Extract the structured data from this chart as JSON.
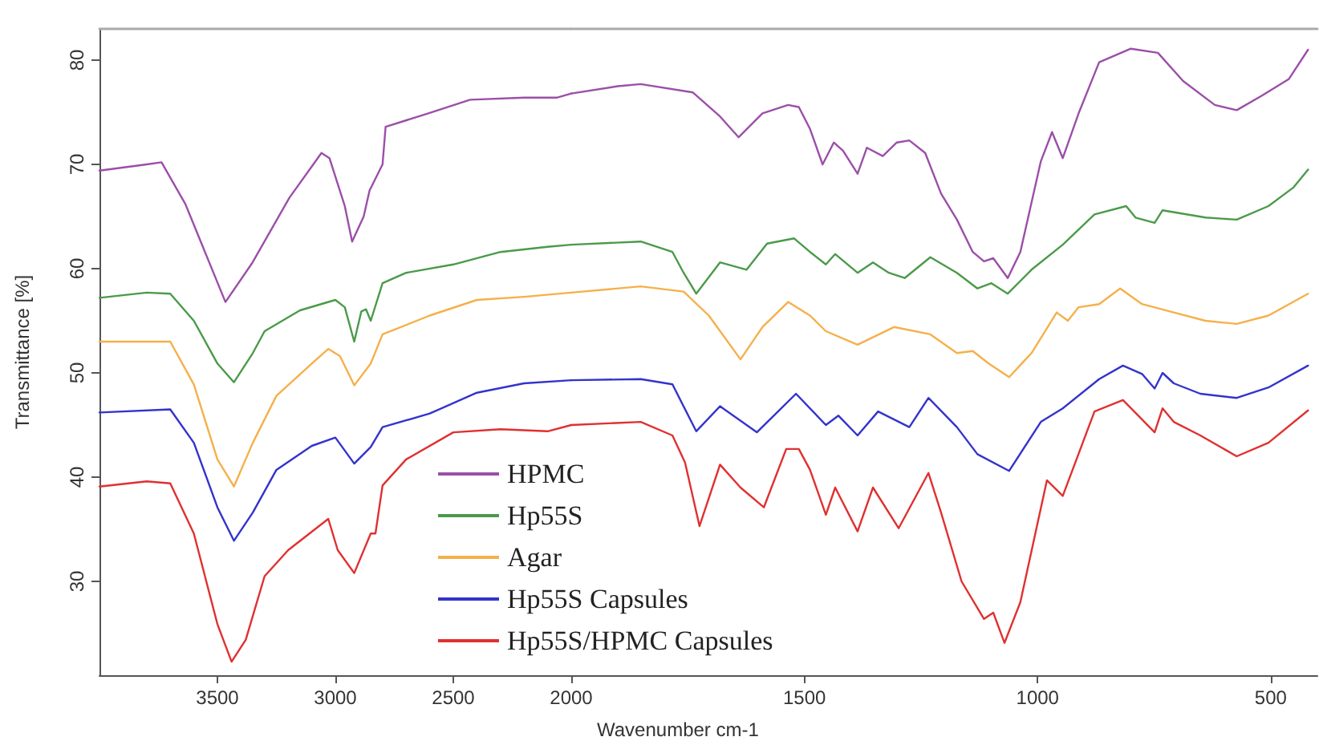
{
  "chart_data": [
    {
      "type": "line",
      "ylabel": "Transmittance [%]",
      "xlim": [
        4000,
        2000
      ],
      "xticks": [
        3500,
        3000,
        2500,
        2000
      ],
      "ylim": [
        21,
        83
      ],
      "yticks": [
        30,
        40,
        50,
        60,
        70,
        80
      ],
      "grid": false,
      "legend": "bottom right",
      "marker": "none",
      "line_style": "solid",
      "series": [
        {
          "name": "HPMC",
          "color": "#9b4fa8",
          "x": [
            4000,
            3800,
            3737,
            3636,
            3466,
            3351,
            3195,
            3059,
            3025,
            2960,
            2929,
            2880,
            2855,
            2800,
            2787,
            2606,
            2429,
            2200,
            2062,
            2000
          ],
          "values": [
            69.4,
            70.0,
            70.2,
            66.2,
            56.8,
            60.6,
            66.8,
            71.1,
            70.6,
            66.0,
            62.6,
            65.0,
            67.5,
            70.0,
            73.6,
            74.9,
            76.2,
            76.4,
            76.4,
            76.8
          ]
        },
        {
          "name": "Hp55S",
          "color": "#4a9a4a",
          "x": [
            4000,
            3800,
            3700,
            3600,
            3500,
            3430,
            3350,
            3300,
            3150,
            3000,
            2960,
            2920,
            2890,
            2870,
            2850,
            2800,
            2700,
            2500,
            2300,
            2100,
            2000
          ],
          "values": [
            57.2,
            57.7,
            57.6,
            55.0,
            50.9,
            49.1,
            51.9,
            54.0,
            56.0,
            57.0,
            56.3,
            53.0,
            55.9,
            56.1,
            55.0,
            58.6,
            59.6,
            60.4,
            61.6,
            62.1,
            62.3
          ]
        },
        {
          "name": "Agar",
          "color": "#f5b04a",
          "x": [
            4000,
            3700,
            3600,
            3500,
            3430,
            3350,
            3250,
            3100,
            3030,
            2980,
            2920,
            2850,
            2800,
            2600,
            2400,
            2200,
            2000
          ],
          "values": [
            53.0,
            53.0,
            48.9,
            41.7,
            39.1,
            43.3,
            47.8,
            50.9,
            52.3,
            51.6,
            48.8,
            50.9,
            53.7,
            55.5,
            57.0,
            57.3,
            57.7
          ]
        },
        {
          "name": "Hp55S Capsules",
          "color": "#3333cc",
          "x": [
            4000,
            3700,
            3600,
            3500,
            3430,
            3350,
            3250,
            3100,
            3000,
            2920,
            2850,
            2800,
            2600,
            2400,
            2200,
            2000
          ],
          "values": [
            46.2,
            46.5,
            43.3,
            37.1,
            33.9,
            36.6,
            40.7,
            43.0,
            43.8,
            41.3,
            42.9,
            44.8,
            46.1,
            48.1,
            49.0,
            49.3
          ]
        },
        {
          "name": "Hp55S/HPMC Capsules",
          "color": "#e03030",
          "x": [
            4000,
            3800,
            3700,
            3600,
            3500,
            3440,
            3380,
            3300,
            3200,
            3030,
            2990,
            2920,
            2850,
            2830,
            2800,
            2700,
            2500,
            2300,
            2100,
            2000
          ],
          "values": [
            39.1,
            39.6,
            39.4,
            34.6,
            25.9,
            22.3,
            24.4,
            30.5,
            33.0,
            36.0,
            33.0,
            30.8,
            34.6,
            34.6,
            39.2,
            41.7,
            44.3,
            44.6,
            44.4,
            45.0
          ]
        }
      ]
    },
    {
      "type": "line",
      "xlabel": "Wavenumber cm-1",
      "xlim": [
        2000,
        400
      ],
      "xticks": [
        1500,
        1000,
        500
      ],
      "ylim": [
        21,
        83
      ],
      "tick_labels": "x",
      "grid": false,
      "marker": "none",
      "line_style": "solid",
      "series": [
        {
          "color": "#9b4fa8",
          "x": [
            2000,
            1900,
            1851,
            1739,
            1681,
            1641,
            1590,
            1535,
            1512,
            1488,
            1461,
            1437,
            1417,
            1386,
            1366,
            1332,
            1302,
            1275,
            1241,
            1207,
            1173,
            1139,
            1115,
            1095,
            1064,
            1037,
            993,
            969,
            946,
            912,
            868,
            800,
            742,
            688,
            620,
            573,
            519,
            461,
            420
          ],
          "values": [
            76.8,
            77.5,
            77.7,
            76.9,
            74.6,
            72.6,
            74.9,
            75.7,
            75.5,
            73.4,
            70.0,
            72.1,
            71.3,
            69.1,
            71.6,
            70.8,
            72.1,
            72.3,
            71.1,
            67.2,
            64.7,
            61.6,
            60.7,
            61.0,
            59.1,
            61.6,
            70.3,
            73.1,
            70.6,
            74.9,
            79.8,
            81.1,
            80.7,
            78.0,
            75.7,
            75.2,
            76.6,
            78.2,
            81.0
          ]
        },
        {
          "color": "#4a9a4a",
          "x": [
            2000,
            1851,
            1783,
            1759,
            1732,
            1681,
            1624,
            1580,
            1522,
            1488,
            1454,
            1434,
            1386,
            1353,
            1319,
            1285,
            1230,
            1173,
            1129,
            1099,
            1064,
            1013,
            946,
            878,
            810,
            790,
            749,
            732,
            640,
            573,
            505,
            451,
            420
          ],
          "values": [
            62.3,
            62.6,
            61.6,
            59.6,
            57.6,
            60.6,
            59.9,
            62.4,
            62.9,
            61.6,
            60.4,
            61.4,
            59.6,
            60.6,
            59.6,
            59.1,
            61.1,
            59.6,
            58.1,
            58.6,
            57.6,
            59.9,
            62.3,
            65.2,
            66.0,
            64.9,
            64.4,
            65.6,
            64.9,
            64.7,
            66.0,
            67.8,
            69.5
          ]
        },
        {
          "color": "#f5b04a",
          "x": [
            2000,
            1851,
            1759,
            1705,
            1637,
            1590,
            1535,
            1488,
            1454,
            1386,
            1308,
            1230,
            1173,
            1139,
            1105,
            1061,
            1013,
            959,
            935,
            912,
            868,
            823,
            776,
            708,
            640,
            573,
            505,
            420
          ],
          "values": [
            57.7,
            58.3,
            57.8,
            55.5,
            51.3,
            54.4,
            56.8,
            55.5,
            54.0,
            52.7,
            54.4,
            53.7,
            51.9,
            52.1,
            50.9,
            49.6,
            51.9,
            55.8,
            55.0,
            56.3,
            56.6,
            58.1,
            56.6,
            55.8,
            55.0,
            54.7,
            55.5,
            57.6
          ]
        },
        {
          "color": "#3333cc",
          "x": [
            2000,
            1851,
            1783,
            1732,
            1681,
            1602,
            1518,
            1454,
            1427,
            1386,
            1342,
            1275,
            1234,
            1173,
            1129,
            1061,
            993,
            946,
            868,
            817,
            776,
            749,
            732,
            708,
            651,
            573,
            505,
            420
          ],
          "values": [
            49.3,
            49.4,
            48.9,
            44.4,
            46.8,
            44.3,
            48.0,
            45.0,
            45.9,
            44.0,
            46.3,
            44.8,
            47.6,
            44.8,
            42.2,
            40.6,
            45.3,
            46.6,
            49.4,
            50.7,
            49.9,
            48.5,
            50.0,
            49.0,
            48.0,
            47.6,
            48.6,
            50.7
          ]
        },
        {
          "color": "#e03030",
          "x": [
            2000,
            1851,
            1783,
            1756,
            1725,
            1681,
            1637,
            1587,
            1539,
            1512,
            1488,
            1454,
            1434,
            1386,
            1353,
            1298,
            1234,
            1207,
            1163,
            1115,
            1095,
            1071,
            1037,
            980,
            946,
            878,
            817,
            749,
            732,
            708,
            651,
            573,
            505,
            420
          ],
          "values": [
            45.0,
            45.3,
            44.0,
            41.4,
            35.3,
            41.2,
            39.0,
            37.1,
            42.7,
            42.7,
            40.7,
            36.4,
            39.0,
            34.8,
            39.0,
            35.1,
            40.4,
            36.6,
            30.0,
            26.4,
            27.0,
            24.1,
            28.0,
            39.7,
            38.2,
            46.3,
            47.4,
            44.3,
            46.6,
            45.3,
            44.0,
            42.0,
            43.3,
            46.4
          ]
        }
      ]
    }
  ]
}
